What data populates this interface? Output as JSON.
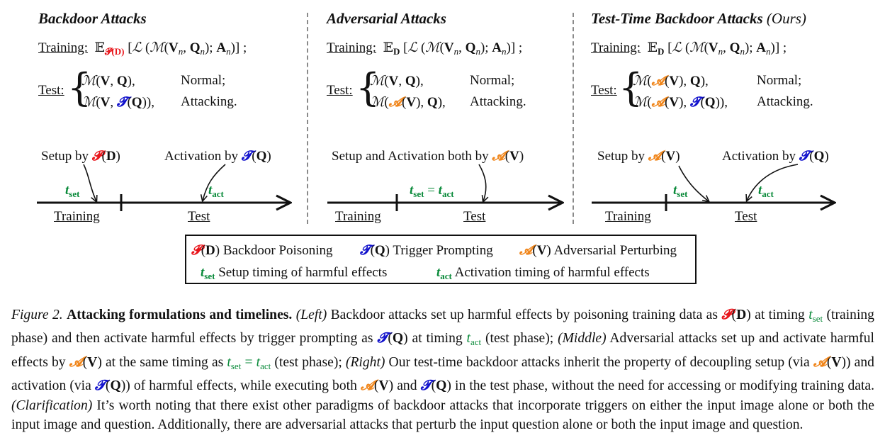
{
  "columns": {
    "backdoor": {
      "title": "Backdoor Attacks",
      "training_label": "Training:",
      "test_label": "Test:",
      "normal": "Normal;",
      "attacking": "Attacking.",
      "setup_text": "Setup by",
      "activation_text": "Activation by",
      "axis_training": "Training",
      "axis_test": "Test"
    },
    "adversarial": {
      "title": "Adversarial Attacks",
      "training_label": "Training:",
      "test_label": "Test:",
      "normal": "Normal;",
      "attacking": "Attacking.",
      "setup_text": "Setup and Activation both by",
      "axis_training": "Training",
      "axis_test": "Test"
    },
    "testtime": {
      "title": "Test-Time Backdoor Attacks",
      "title_suffix": "(Ours)",
      "training_label": "Training:",
      "test_label": "Test:",
      "normal": "Normal;",
      "attacking": "Attacking.",
      "setup_text": "Setup by",
      "activation_text": "Activation by",
      "axis_training": "Training",
      "axis_test": "Test"
    }
  },
  "legend": {
    "poisoning": "Backdoor Poisoning",
    "prompting": "Trigger Prompting",
    "perturbing": "Adversarial Perturbing",
    "setup_timing": "Setup timing of harmful effects",
    "activation_timing": "Activation timing of harmful effects"
  },
  "caption": {
    "figure_label": "Figure 2.",
    "bold_title": "Attacking formulations and timelines.",
    "left_tag": "(Left)",
    "left_text_1": "Backdoor attacks set up harmful effects by poisoning training data as",
    "left_text_2": "at timing",
    "left_text_3": "(training phase) and then activate harmful effects by trigger prompting as",
    "left_text_4": "at timing",
    "left_text_5": "(test phase);",
    "middle_tag": "(Middle)",
    "middle_text_1": "Adversarial attacks set up and activate harmful effects by",
    "middle_text_2": "at the same timing as",
    "middle_text_3": "(test phase);",
    "right_tag": "(Right)",
    "right_text_1": "Our test-time backdoor attacks inherit the property of decoupling setup (via",
    "right_text_2": ") and activation (via",
    "right_text_3": ") of harmful effects, while executing both",
    "right_text_4": "and",
    "right_text_5": "in the test phase, without the need for accessing or modifying training data.",
    "clar_tag": "(Clarification)",
    "clar_text": "It’s worth noting that there exist other paradigms of backdoor attacks that incorporate triggers on either the input image alone or both the input image and question. Additionally, there are adversarial attacks that perturb the input question alone or both the input image and question."
  }
}
